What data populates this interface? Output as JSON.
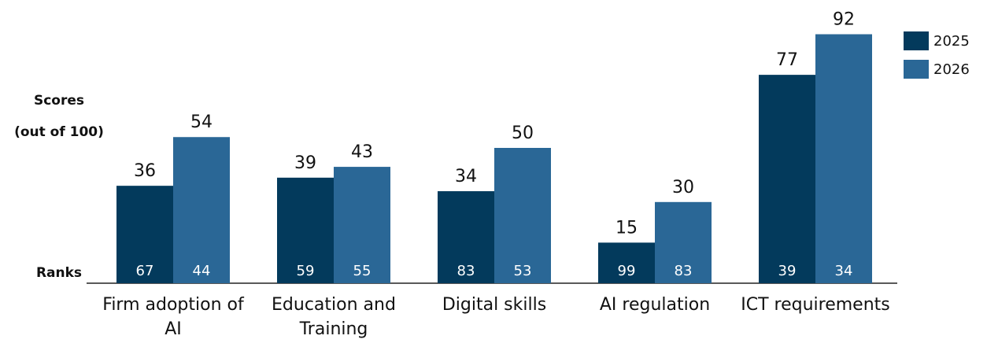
{
  "chart_data": {
    "type": "bar",
    "categories": [
      "Firm adoption of AI",
      "Education and Training",
      "Digital skills",
      "AI regulation",
      "ICT requirements"
    ],
    "series": [
      {
        "name": "2025",
        "color": "#033a5c",
        "values": [
          36,
          39,
          34,
          15,
          77
        ],
        "ranks": [
          67,
          59,
          83,
          99,
          39
        ]
      },
      {
        "name": "2026",
        "color": "#2a6796",
        "values": [
          54,
          43,
          50,
          30,
          92
        ],
        "ranks": [
          44,
          55,
          53,
          83,
          34
        ]
      }
    ],
    "score_label": "Scores",
    "score_unit": "(out of 100)",
    "rank_label": "Ranks",
    "ylim": [
      0,
      100
    ],
    "legend": "top-right"
  }
}
